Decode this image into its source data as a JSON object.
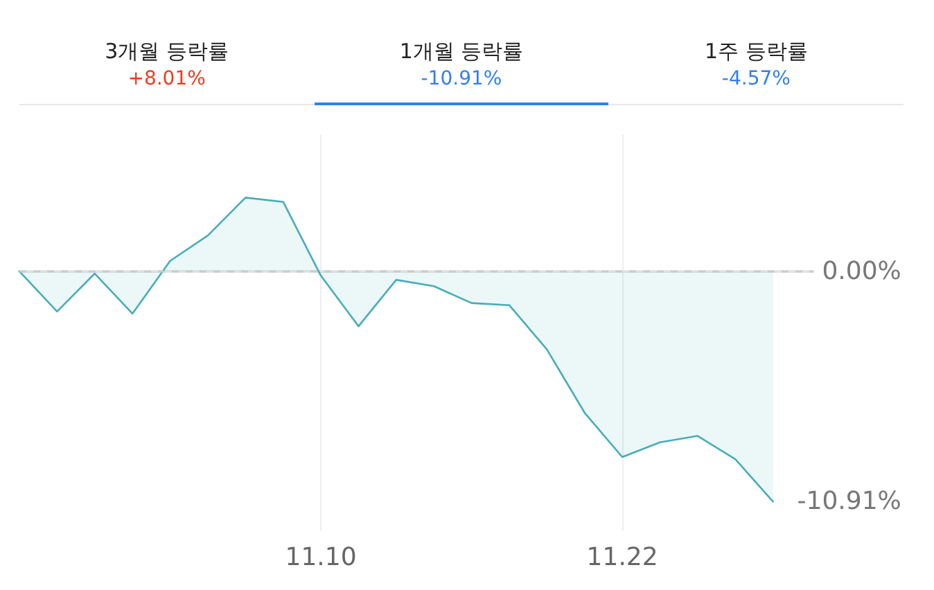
{
  "chart_data": {
    "type": "area",
    "annotations": [
      "3개월 등락률",
      "+8.01%",
      "1개월 등락률",
      "-10.91%",
      "1주 등락률",
      "-4.57%"
    ],
    "categories": [
      null,
      null,
      null,
      null,
      null,
      null,
      null,
      null,
      "11.10",
      null,
      null,
      null,
      null,
      null,
      null,
      null,
      "11.22",
      null,
      null,
      null,
      null,
      null,
      null,
      null
    ],
    "values": [
      0,
      -1.9,
      -0.1,
      -2.0,
      0.5,
      1.7,
      3.5,
      3.3,
      -0.2,
      -2.6,
      -0.4,
      -0.7,
      -1.5,
      -1.6,
      -3.7,
      -6.7,
      -8.8,
      -8.1,
      -7.8,
      -8.9,
      -10.91,
      null,
      null,
      null
    ],
    "color": "#47adb8",
    "ylim": [
      -12.3,
      6.5
    ],
    "yticks": [
      {
        "value": 0,
        "label": "0.00%"
      },
      {
        "value": -10.91,
        "label": "-10.91%"
      }
    ],
    "grid": "x",
    "marker": "none",
    "ref_lines": [
      {
        "axis": "y",
        "value": 0,
        "color": "#cccccc",
        "line_style": "dashed"
      }
    ]
  }
}
